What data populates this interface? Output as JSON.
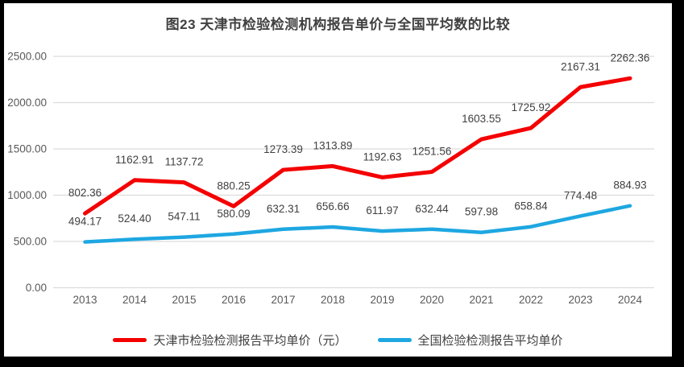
{
  "frame": {
    "border_color": "#000000",
    "background": "#ffffff"
  },
  "chart_data": {
    "type": "line",
    "title": "图23 天津市检验检测机构报告单价与全国平均数的比较",
    "categories": [
      "2013",
      "2014",
      "2015",
      "2016",
      "2017",
      "2018",
      "2019",
      "2020",
      "2021",
      "2022",
      "2023",
      "2024"
    ],
    "series": [
      {
        "name": "天津市检验检测报告平均单价（元）",
        "color": "#f40000",
        "values": [
          802.36,
          1162.91,
          1137.72,
          880.25,
          1273.39,
          1313.89,
          1192.63,
          1251.56,
          1603.55,
          1725.92,
          2167.31,
          2262.36
        ]
      },
      {
        "name": "全国检验检测报告平均单价",
        "color": "#1ea7e1",
        "values": [
          494.17,
          524.4,
          547.11,
          580.09,
          632.31,
          656.66,
          611.97,
          632.44,
          597.98,
          658.84,
          774.48,
          884.93
        ]
      }
    ],
    "xlabel": "",
    "ylabel": "",
    "ylim": [
      0,
      2500
    ],
    "y_tick_step": 500,
    "y_tick_labels": [
      "0.00",
      "500.00",
      "1000.00",
      "1500.00",
      "2000.00",
      "2500.00"
    ],
    "grid": true,
    "legend_position": "bottom",
    "data_labels_shown": true,
    "colors": {
      "gridline": "#dcdcdc",
      "axis_label": "#595959",
      "data_label": "#404040",
      "title": "#404040"
    }
  }
}
